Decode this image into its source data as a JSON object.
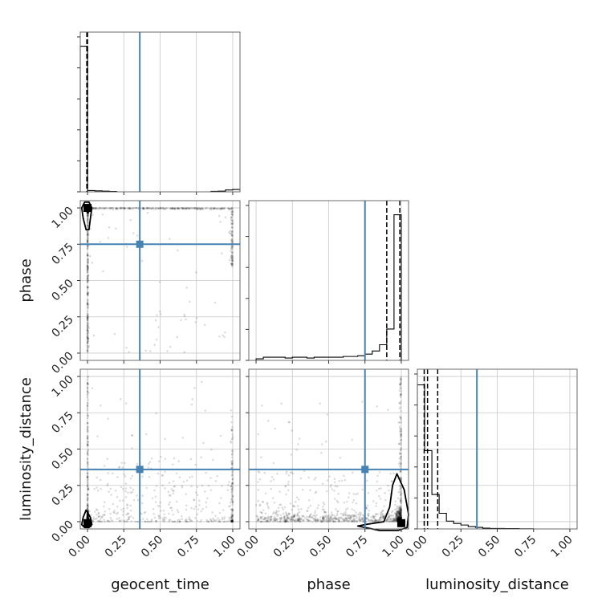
{
  "chart_data": {
    "type": "corner",
    "parameters": [
      "geocent_time",
      "phase",
      "luminosity_distance"
    ],
    "axis_labels": {
      "geocent_time": "geocent_time",
      "phase": "phase",
      "luminosity_distance": "luminosity_distance"
    },
    "tick_values": [
      0.0,
      0.25,
      0.5,
      0.75,
      1.0
    ],
    "tick_labels": [
      "0.00",
      "0.25",
      "0.50",
      "0.75",
      "1.00"
    ],
    "xlim": [
      -0.05,
      1.05
    ],
    "ylim": [
      -0.05,
      1.05
    ],
    "grid": true,
    "truth_color": "#4682b4",
    "truths": {
      "geocent_time": 0.36,
      "phase": 0.75,
      "luminosity_distance": 0.36
    },
    "histograms": {
      "geocent_time": {
        "bin_width": 0.05,
        "bins": [
          {
            "x0": -0.05,
            "count": 0.93
          },
          {
            "x0": 0.0,
            "count": 0.008
          },
          {
            "x0": 0.05,
            "count": 0.006
          },
          {
            "x0": 0.1,
            "count": 0.004
          },
          {
            "x0": 0.15,
            "count": 0.002
          },
          {
            "x0": 0.85,
            "count": 0.003
          },
          {
            "x0": 0.9,
            "count": 0.004
          },
          {
            "x0": 0.95,
            "count": 0.012
          },
          {
            "x0": 1.0,
            "count": 0.015
          }
        ],
        "ylim": [
          0,
          1.02
        ],
        "quantiles": [
          -0.005,
          0.0
        ]
      },
      "phase": {
        "bin_width": 0.05,
        "bins": [
          {
            "x0": 0.0,
            "count": 0.01
          },
          {
            "x0": 0.05,
            "count": 0.02
          },
          {
            "x0": 0.1,
            "count": 0.02
          },
          {
            "x0": 0.15,
            "count": 0.02
          },
          {
            "x0": 0.2,
            "count": 0.015
          },
          {
            "x0": 0.25,
            "count": 0.02
          },
          {
            "x0": 0.3,
            "count": 0.02
          },
          {
            "x0": 0.35,
            "count": 0.015
          },
          {
            "x0": 0.4,
            "count": 0.02
          },
          {
            "x0": 0.45,
            "count": 0.02
          },
          {
            "x0": 0.5,
            "count": 0.02
          },
          {
            "x0": 0.55,
            "count": 0.02
          },
          {
            "x0": 0.6,
            "count": 0.025
          },
          {
            "x0": 0.65,
            "count": 0.025
          },
          {
            "x0": 0.7,
            "count": 0.03
          },
          {
            "x0": 0.75,
            "count": 0.04
          },
          {
            "x0": 0.8,
            "count": 0.06
          },
          {
            "x0": 0.85,
            "count": 0.1
          },
          {
            "x0": 0.9,
            "count": 0.2
          },
          {
            "x0": 0.95,
            "count": 0.93
          }
        ],
        "ylim": [
          0,
          1.02
        ],
        "quantiles": [
          0.9,
          0.99
        ]
      },
      "luminosity_distance": {
        "bin_width": 0.05,
        "bins": [
          {
            "x0": -0.05,
            "count": 0.92
          },
          {
            "x0": 0.0,
            "count": 0.5
          },
          {
            "x0": 0.05,
            "count": 0.22
          },
          {
            "x0": 0.1,
            "count": 0.1
          },
          {
            "x0": 0.15,
            "count": 0.05
          },
          {
            "x0": 0.2,
            "count": 0.035
          },
          {
            "x0": 0.25,
            "count": 0.025
          },
          {
            "x0": 0.3,
            "count": 0.015
          },
          {
            "x0": 0.35,
            "count": 0.01
          },
          {
            "x0": 0.4,
            "count": 0.005
          },
          {
            "x0": 0.45,
            "count": 0.003
          },
          {
            "x0": 0.5,
            "count": 0.003
          },
          {
            "x0": 0.55,
            "count": 0.002
          },
          {
            "x0": 0.6,
            "count": 0.002
          },
          {
            "x0": 0.65,
            "count": 0.001
          },
          {
            "x0": 0.7,
            "count": 0.001
          }
        ],
        "ylim": [
          0,
          1.02
        ],
        "quantiles": [
          -0.003,
          0.02,
          0.09
        ]
      }
    },
    "scatter": {
      "phase_vs_geocent_time": {
        "x_param": "geocent_time",
        "y_param": "phase",
        "peak": [
          0.0,
          1.0
        ],
        "contours": [
          [
            [
              -0.02,
              1.04
            ],
            [
              0.01,
              1.04
            ],
            [
              0.03,
              1.0
            ],
            [
              0.02,
              0.93
            ],
            [
              0.01,
              0.85
            ],
            [
              -0.01,
              0.85
            ],
            [
              -0.03,
              0.93
            ],
            [
              -0.04,
              1.0
            ]
          ]
        ]
      },
      "luminosity_distance_vs_geocent_time": {
        "x_param": "geocent_time",
        "y_param": "luminosity_distance",
        "peak": [
          0.0,
          -0.01
        ],
        "contours": [
          [
            [
              -0.01,
              0.08
            ],
            [
              0.02,
              0.03
            ],
            [
              0.03,
              -0.02
            ],
            [
              0.01,
              -0.04
            ],
            [
              -0.02,
              -0.04
            ],
            [
              -0.04,
              -0.02
            ],
            [
              -0.03,
              0.03
            ]
          ]
        ]
      },
      "luminosity_distance_vs_phase": {
        "x_param": "phase",
        "y_param": "luminosity_distance",
        "peak": [
          1.0,
          -0.01
        ],
        "contours": [
          [
            [
              0.97,
              0.33
            ],
            [
              1.02,
              0.22
            ],
            [
              1.05,
              0.05
            ],
            [
              1.04,
              -0.04
            ],
            [
              0.98,
              -0.06
            ],
            [
              0.85,
              -0.06
            ],
            [
              0.7,
              -0.03
            ],
            [
              0.75,
              -0.02
            ],
            [
              0.88,
              0.0
            ],
            [
              0.92,
              0.1
            ],
            [
              0.94,
              0.25
            ]
          ]
        ]
      }
    }
  }
}
